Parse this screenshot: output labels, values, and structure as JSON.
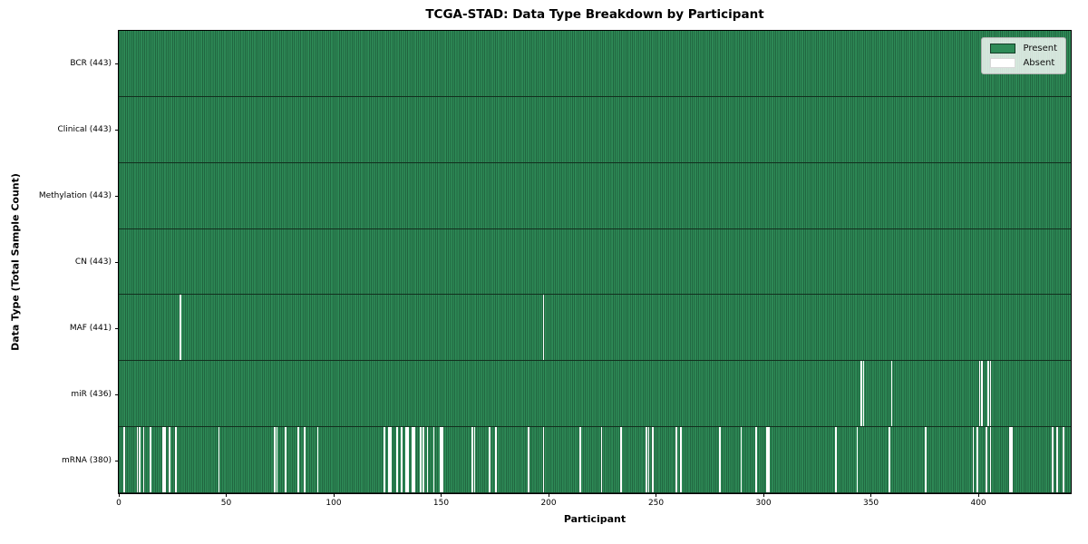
{
  "colors": {
    "present": "#2e8b57",
    "absent": "#ffffff",
    "cell_edge": "#123c26",
    "row_separator": "#122f1e",
    "plot_border": "#000000",
    "legend_border": "#b0b0b0"
  },
  "legend": {
    "present_label": "Present",
    "absent_label": "Absent"
  },
  "chart_data": {
    "type": "heatmap",
    "title": "TCGA-STAD: Data Type Breakdown by Participant",
    "xlabel": "Participant",
    "ylabel": "Data Type (Total Sample Count)",
    "xlim": [
      0,
      443
    ],
    "x_ticks": [
      0,
      50,
      100,
      150,
      200,
      250,
      300,
      350,
      400
    ],
    "total_participants": 443,
    "grid": false,
    "legend_position": "upper right",
    "legend_entries": [
      "Present",
      "Absent"
    ],
    "rows": [
      {
        "name": "BCR",
        "label": "BCR (443)",
        "present_count": 443,
        "absent_participants": []
      },
      {
        "name": "Clinical",
        "label": "Clinical (443)",
        "present_count": 443,
        "absent_participants": []
      },
      {
        "name": "Methylation",
        "label": "Methylation (443)",
        "present_count": 443,
        "absent_participants": []
      },
      {
        "name": "CN",
        "label": "CN (443)",
        "present_count": 443,
        "absent_participants": []
      },
      {
        "name": "MAF",
        "label": "MAF (441)",
        "present_count": 441,
        "absent_participants": [
          28,
          197
        ]
      },
      {
        "name": "miR",
        "label": "miR (436)",
        "present_count": 436,
        "absent_participants": [
          345,
          346,
          359,
          400,
          401,
          404,
          405
        ]
      },
      {
        "name": "mRNA",
        "label": "mRNA (380)",
        "present_count": 380,
        "absent_participants": [
          2,
          8,
          9,
          11,
          14,
          20,
          21,
          23,
          26,
          46,
          72,
          73,
          77,
          83,
          86,
          92,
          123,
          125,
          126,
          129,
          131,
          133,
          134,
          136,
          137,
          140,
          141,
          143,
          146,
          149,
          150,
          164,
          165,
          172,
          175,
          190,
          197,
          214,
          224,
          233,
          245,
          246,
          248,
          259,
          261,
          279,
          289,
          296,
          301,
          302,
          333,
          343,
          358,
          375,
          397,
          399,
          403,
          405,
          414,
          415,
          434,
          436,
          439
        ]
      }
    ]
  }
}
